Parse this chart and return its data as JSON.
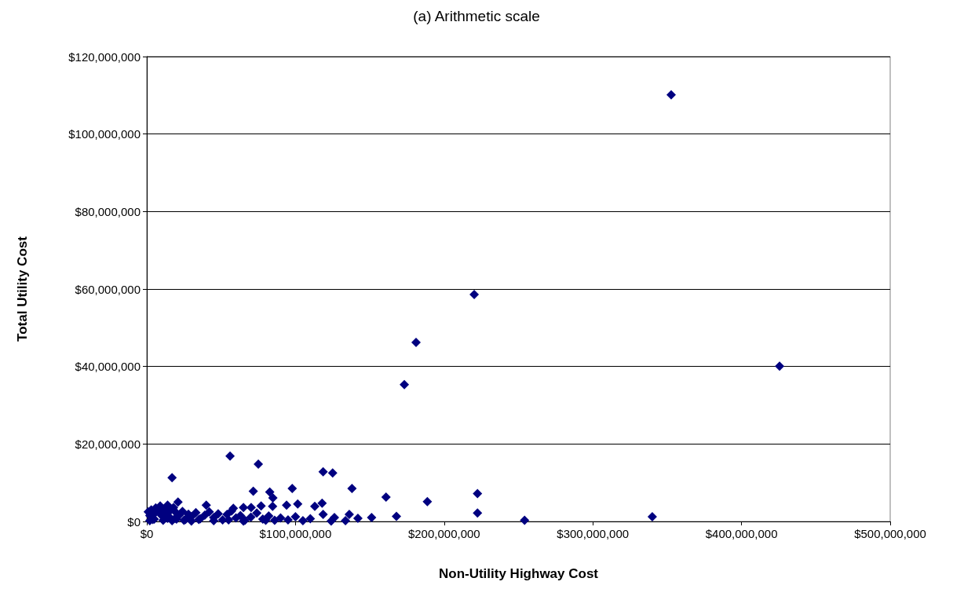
{
  "chart_data": {
    "type": "scatter",
    "title": "(a) Arithmetic scale",
    "xlabel": "Non-Utility Highway Cost",
    "ylabel": "Total Utility Cost",
    "xlim": [
      0,
      500000000
    ],
    "ylim": [
      0,
      120000000
    ],
    "xticks": [
      {
        "value": 0,
        "label": "$0"
      },
      {
        "value": 100000000,
        "label": "$100,000,000"
      },
      {
        "value": 200000000,
        "label": "$200,000,000"
      },
      {
        "value": 300000000,
        "label": "$300,000,000"
      },
      {
        "value": 400000000,
        "label": "$400,000,000"
      },
      {
        "value": 500000000,
        "label": "$500,000,000"
      }
    ],
    "yticks": [
      {
        "value": 0,
        "label": "$0"
      },
      {
        "value": 20000000,
        "label": "$20,000,000"
      },
      {
        "value": 40000000,
        "label": "$40,000,000"
      },
      {
        "value": 60000000,
        "label": "$60,000,000"
      },
      {
        "value": 80000000,
        "label": "$80,000,000"
      },
      {
        "value": 100000000,
        "label": "$100,000,000"
      },
      {
        "value": 120000000,
        "label": "$120,000,000"
      }
    ],
    "grid": "y",
    "marker": "diamond",
    "series": [
      {
        "color": "#000080",
        "x": [
          352700000,
          425600000,
          220200000,
          181100000,
          173200000,
          56000000,
          75000000,
          17000000,
          118600000,
          125000000,
          71600000,
          82700000,
          84800000,
          97800000,
          138000000,
          160900000,
          21000000,
          40000000,
          58200000,
          65000000,
          70200000,
          76900000,
          84600000,
          94000000,
          101500000,
          113000000,
          117900000,
          118600000,
          126200000,
          136200000,
          142000000,
          151200000,
          124000000,
          133600000,
          167900000,
          188700000,
          222400000,
          222400000,
          254100000,
          340000000,
          1000000,
          2000000,
          3000000,
          4000000,
          5000000,
          6000000,
          8000000,
          9000000,
          10000000,
          11000000,
          13000000,
          14000000,
          15000000,
          16000000,
          18000000,
          19000000,
          20000000,
          22000000,
          24000000,
          26000000,
          28000000,
          30000000,
          33000000,
          36000000,
          39000000,
          42000000,
          45000000,
          48000000,
          51000000,
          54000000,
          57000000,
          60000000,
          63000000,
          66000000,
          70000000,
          74000000,
          78000000,
          82000000,
          86000000,
          90000000,
          95000000,
          100000000,
          105000000,
          110000000,
          2000000,
          5000000,
          11000000,
          14000000,
          17000000,
          20000000,
          25000000,
          30000000,
          35000000,
          45000000,
          55000000,
          65000000,
          80000000
        ],
        "values": [
          110100000,
          40100000,
          58600000,
          46200000,
          35300000,
          16900000,
          14800000,
          11300000,
          12800000,
          12500000,
          7800000,
          7600000,
          6100000,
          8500000,
          8500000,
          6300000,
          5000000,
          4200000,
          3400000,
          3600000,
          3600000,
          4000000,
          3900000,
          4200000,
          4500000,
          3900000,
          4700000,
          1800000,
          1000000,
          1800000,
          800000,
          1000000,
          100000,
          200000,
          1300000,
          5100000,
          7200000,
          2200000,
          300000,
          1200000,
          2500000,
          1500000,
          3000000,
          500000,
          2000000,
          3500000,
          2800000,
          4000000,
          1500000,
          3200000,
          2500000,
          4200000,
          1200000,
          2900000,
          3600000,
          800000,
          2200000,
          1700000,
          2600000,
          500000,
          1900000,
          1200000,
          2300000,
          700000,
          1600000,
          2500000,
          1000000,
          2000000,
          400000,
          1800000,
          2700000,
          900000,
          1500000,
          300000,
          1100000,
          2200000,
          600000,
          1400000,
          300000,
          900000,
          400000,
          1200000,
          200000,
          700000,
          200000,
          600000,
          300000,
          800000,
          200000,
          600000,
          300000,
          100000,
          500000,
          200000,
          400000,
          100000,
          300000
        ]
      }
    ]
  }
}
